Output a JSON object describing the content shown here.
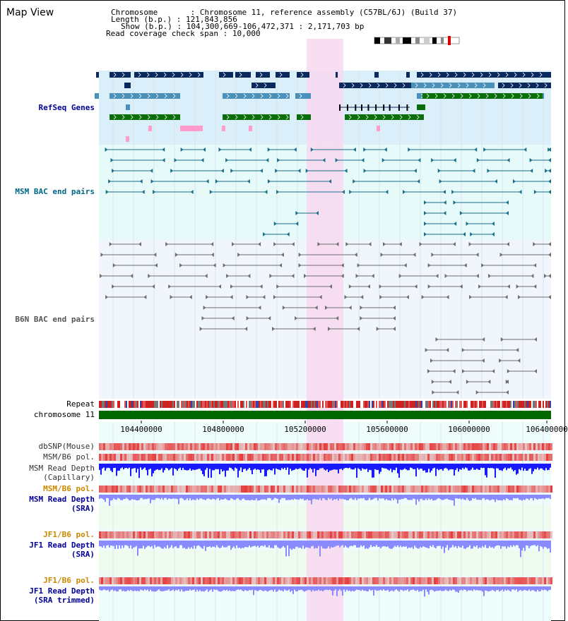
{
  "view_title": "Map View",
  "info": {
    "chromosome_label": "Chromosome",
    "chromosome_value": "Chromosome 11, reference assembly (C57BL/6J) (Build 37)",
    "length_label": "Length (b.p.)",
    "length_value": "121,843,856",
    "show_label": "Show (b.p.)",
    "show_value": "104,300,669-106,472,371 : 2,171,703 bp",
    "coverage_label": "Read coverage check span",
    "coverage_value": "10,000"
  },
  "tracks": {
    "refseq": "RefSeq Genes",
    "msm_bac": "MSM BAC end pairs",
    "b6n_bac": "B6N BAC end pairs",
    "repeat": "Repeat",
    "chromosome": "chromosome 11",
    "dbsnp": "dbSNP(Mouse)",
    "msm_b6_pol": "MSM/B6 pol.",
    "msm_depth_cap_1": "MSM Read Depth",
    "msm_depth_cap_2": "(Capillary)",
    "msm_b6_pol_sra": "MSM/B6 pol.",
    "msm_depth_sra_1": "MSM Read Depth",
    "msm_depth_sra_2": "(SRA)",
    "jf1_b6_pol": "JF1/B6 pol.",
    "jf1_depth_sra_1": "JF1 Read Depth",
    "jf1_depth_sra_2": "(SRA)",
    "jf1_b6_pol_trim": "JF1/B6 pol.",
    "jf1_depth_trim_1": "JF1 Read Depth",
    "jf1_depth_trim_2": "(SRA trimmed)"
  },
  "ruler": {
    "ticks": [
      "104400000",
      "104800000",
      "105200000",
      "105600000",
      "106000000",
      "106400000"
    ]
  },
  "colors": {
    "refseq_bg": "#dbeffa",
    "msm_bg": "#e6fafa",
    "b6n_bg": "#f0f6fc",
    "highlight": "#f8d8f0",
    "dark_blue": "#0a2a5e",
    "mid_blue": "#4a90b8",
    "green": "#0a6e0a",
    "pink": "#ff9ccc",
    "msm_line": "#1a6e8a",
    "grey_line": "#6e6e6e",
    "label_blue": "#000099",
    "label_teal": "#006688",
    "label_grey": "#555555",
    "label_orange": "#cc8800",
    "depth_blue": "#1a1aff",
    "depth_light": "#8a8aff"
  }
}
